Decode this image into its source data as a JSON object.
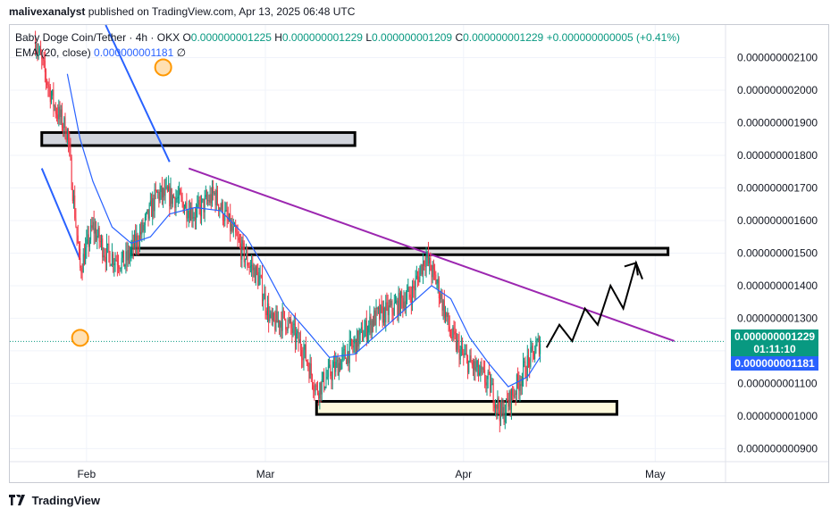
{
  "header": {
    "publisher": "malivexanalyst",
    "text": "published on TradingView.com, Apr 13, 2025 06:48 UTC"
  },
  "legend": {
    "symbol": "Baby Doge Coin/Tether · 4h · OKX",
    "o_label": "O",
    "o": "0.000000001225",
    "h_label": "H",
    "h": "0.000000001229",
    "l_label": "L",
    "l": "0.000000001209",
    "c_label": "C",
    "c": "0.000000001229",
    "change": "+0.000000000005 (+0.41%)",
    "ema_label": "EMA (20, close)",
    "ema_value": "0.000000001181",
    "ema_extra": "∅"
  },
  "labels": {
    "last_price": "0.000000001229",
    "countdown": "01:11:10",
    "ema_price": "0.000000001181"
  },
  "footer": {
    "brand": "TradingView"
  },
  "colors": {
    "up": "#089981",
    "down": "#f23645",
    "ema": "#2962ff",
    "trend": "#9c27b0",
    "price_line": "#089981"
  },
  "chart_data": {
    "type": "candlestick",
    "symbol": "Baby Doge Coin/Tether",
    "interval": "4h",
    "exchange": "OKX",
    "x_ticks": [
      "Feb",
      "Mar",
      "Apr",
      "May"
    ],
    "y_ticks": [
      2.1e-09,
      2e-09,
      1.9e-09,
      1.8e-09,
      1.7e-09,
      1.6e-09,
      1.5e-09,
      1.4e-09,
      1.3e-09,
      1.2e-09,
      1.1e-09,
      1e-09,
      9e-10
    ],
    "y_tick_labels": [
      "0.000000002100",
      "0.000000002000",
      "0.000000001900",
      "0.000000001800",
      "0.000000001700",
      "0.000000001600",
      "0.000000001500",
      "0.000000001400",
      "0.000000001300",
      "0.000000001200",
      "0.000000001100",
      "0.000000001000",
      "0.000000000900"
    ],
    "ylim": [
      8.6e-10,
      2.2e-09
    ],
    "price_path": [
      [
        "2025-01-24",
        2.15e-09
      ],
      [
        "2025-01-27",
        1.95e-09
      ],
      [
        "2025-01-29",
        1.87e-09
      ],
      [
        "2025-01-31",
        1.45e-09
      ],
      [
        "2025-02-02",
        1.58e-09
      ],
      [
        "2025-02-04",
        1.5e-09
      ],
      [
        "2025-02-07",
        1.47e-09
      ],
      [
        "2025-02-10",
        1.58e-09
      ],
      [
        "2025-02-12",
        1.68e-09
      ],
      [
        "2025-02-15",
        1.67e-09
      ],
      [
        "2025-02-18",
        1.62e-09
      ],
      [
        "2025-02-21",
        1.68e-09
      ],
      [
        "2025-02-23",
        1.6e-09
      ],
      [
        "2025-02-26",
        1.48e-09
      ],
      [
        "2025-02-28",
        1.42e-09
      ],
      [
        "2025-03-02",
        1.28e-09
      ],
      [
        "2025-03-04",
        1.3e-09
      ],
      [
        "2025-03-07",
        1.2e-09
      ],
      [
        "2025-03-09",
        1.08e-09
      ],
      [
        "2025-03-12",
        1.15e-09
      ],
      [
        "2025-03-15",
        1.22e-09
      ],
      [
        "2025-03-18",
        1.3e-09
      ],
      [
        "2025-03-21",
        1.33e-09
      ],
      [
        "2025-03-24",
        1.38e-09
      ],
      [
        "2025-03-26",
        1.49e-09
      ],
      [
        "2025-03-28",
        1.4e-09
      ],
      [
        "2025-03-30",
        1.25e-09
      ],
      [
        "2025-04-01",
        1.18e-09
      ],
      [
        "2025-04-03",
        1.14e-09
      ],
      [
        "2025-04-05",
        1.1e-09
      ],
      [
        "2025-04-07",
        1e-09
      ],
      [
        "2025-04-09",
        1.08e-09
      ],
      [
        "2025-04-11",
        1.16e-09
      ],
      [
        "2025-04-13",
        1.229e-09
      ]
    ],
    "ema_path": [
      [
        "2025-01-29",
        2.05e-09
      ],
      [
        "2025-01-31",
        1.85e-09
      ],
      [
        "2025-02-02",
        1.72e-09
      ],
      [
        "2025-02-05",
        1.58e-09
      ],
      [
        "2025-02-08",
        1.53e-09
      ],
      [
        "2025-02-11",
        1.55e-09
      ],
      [
        "2025-02-14",
        1.62e-09
      ],
      [
        "2025-02-18",
        1.64e-09
      ],
      [
        "2025-02-22",
        1.63e-09
      ],
      [
        "2025-02-26",
        1.55e-09
      ],
      [
        "2025-03-01",
        1.45e-09
      ],
      [
        "2025-03-04",
        1.34e-09
      ],
      [
        "2025-03-08",
        1.25e-09
      ],
      [
        "2025-03-11",
        1.18e-09
      ],
      [
        "2025-03-15",
        1.19e-09
      ],
      [
        "2025-03-19",
        1.26e-09
      ],
      [
        "2025-03-23",
        1.33e-09
      ],
      [
        "2025-03-27",
        1.4e-09
      ],
      [
        "2025-03-30",
        1.36e-09
      ],
      [
        "2025-04-02",
        1.24e-09
      ],
      [
        "2025-04-05",
        1.16e-09
      ],
      [
        "2025-04-08",
        1.09e-09
      ],
      [
        "2025-04-11",
        1.12e-09
      ],
      [
        "2025-04-13",
        1.181e-09
      ]
    ],
    "last_price": 1.229e-09,
    "ema_last": 1.181e-09,
    "zones": [
      {
        "from": "2025-01-25",
        "to": "2025-03-15",
        "low": 1.83e-09,
        "high": 1.87e-09,
        "fill": "#d1d4dc"
      },
      {
        "from": "2025-02-08",
        "to": "2025-05-03",
        "low": 1.495e-09,
        "high": 1.515e-09,
        "fill": "#e0e0e0"
      },
      {
        "from": "2025-03-09",
        "to": "2025-04-25",
        "low": 1.005e-09,
        "high": 1.045e-09,
        "fill": "#fff9dc"
      }
    ],
    "trendlines": [
      {
        "color": "#9c27b0",
        "points": [
          [
            "2025-02-17",
            1.76e-09
          ],
          [
            "2025-05-04",
            1.23e-09
          ]
        ]
      },
      {
        "color": "#2962ff",
        "points": [
          [
            "2025-01-25",
            1.76e-09
          ],
          [
            "2025-01-31",
            1.48e-09
          ]
        ]
      },
      {
        "color": "#2962ff",
        "points": [
          [
            "2025-02-04",
            2.2e-09
          ],
          [
            "2025-02-14",
            1.78e-09
          ]
        ]
      }
    ],
    "projection": [
      [
        "2025-04-14",
        1.21e-09
      ],
      [
        "2025-04-16",
        1.28e-09
      ],
      [
        "2025-04-18",
        1.23e-09
      ],
      [
        "2025-04-20",
        1.33e-09
      ],
      [
        "2025-04-22",
        1.28e-09
      ],
      [
        "2025-04-24",
        1.4e-09
      ],
      [
        "2025-04-26",
        1.33e-09
      ],
      [
        "2025-04-28",
        1.47e-09
      ],
      [
        "2025-04-29",
        1.42e-09
      ]
    ],
    "circles": [
      {
        "date": "2025-01-31",
        "value": 1.24e-09
      },
      {
        "date": "2025-02-13",
        "value": 2.07e-09
      }
    ]
  }
}
